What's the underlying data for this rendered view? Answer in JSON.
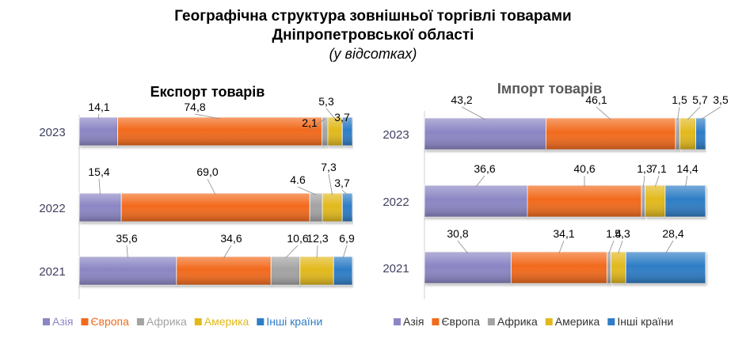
{
  "title_line1": "Географічна структура зовнішньої торгівлі товарами",
  "title_line2": "Дніпропетровської області",
  "subtitle": "(у відсотках)",
  "series_meta": [
    {
      "name": "Азія",
      "color": "#8b86c4"
    },
    {
      "name": "Європа",
      "color": "#f26a1b"
    },
    {
      "name": "Африка",
      "color": "#a3a3a3"
    },
    {
      "name": "Америка",
      "color": "#e2b91c"
    },
    {
      "name": "Інші країни",
      "color": "#2f7dc6"
    }
  ],
  "chart_data": [
    {
      "type": "bar",
      "orientation": "horizontal",
      "stacked": true,
      "title": "Експорт товарів",
      "title_color": "#000000",
      "categories": [
        "2023",
        "2022",
        "2021"
      ],
      "series": [
        {
          "name": "Азія",
          "values": [
            14.1,
            15.4,
            35.6
          ],
          "labels": [
            "14,1",
            "15,4",
            "35,6"
          ]
        },
        {
          "name": "Європа",
          "values": [
            74.8,
            69.0,
            34.6
          ],
          "labels": [
            "74,8",
            "69,0",
            "34,6"
          ]
        },
        {
          "name": "Африка",
          "values": [
            2.1,
            4.6,
            10.6
          ],
          "labels": [
            "2,1",
            "4.6",
            "10,6"
          ]
        },
        {
          "name": "Америка",
          "values": [
            5.3,
            7.3,
            12.3
          ],
          "labels": [
            "5,3",
            "7,3",
            "12,3"
          ]
        },
        {
          "name": "Інші країни",
          "values": [
            3.7,
            3.7,
            6.9
          ],
          "labels": [
            "3,7",
            "3,7",
            "6,9"
          ]
        }
      ],
      "legend_position": "bottom",
      "legend_text_colored": true
    },
    {
      "type": "bar",
      "orientation": "horizontal",
      "stacked": true,
      "title": "Імпорт товарів",
      "title_color": "#595959",
      "categories": [
        "2023",
        "2022",
        "2021"
      ],
      "series": [
        {
          "name": "Азія",
          "values": [
            43.2,
            36.6,
            30.8
          ],
          "labels": [
            "43,2",
            "36,6",
            "30,8"
          ]
        },
        {
          "name": "Європа",
          "values": [
            46.1,
            40.6,
            34.1
          ],
          "labels": [
            "46,1",
            "40,6",
            "34,1"
          ]
        },
        {
          "name": "Африка",
          "values": [
            1.5,
            1.3,
            1.4
          ],
          "labels": [
            "1,5",
            "1,3",
            "1.4"
          ]
        },
        {
          "name": "Америка",
          "values": [
            5.7,
            7.1,
            5.3
          ],
          "labels": [
            "5,7",
            "7,1",
            "5,3"
          ]
        },
        {
          "name": "Інші країни",
          "values": [
            3.5,
            14.4,
            28.4
          ],
          "labels": [
            "3,5",
            "14,4",
            "28,4"
          ]
        }
      ],
      "legend_position": "bottom",
      "legend_text_colored": false
    }
  ]
}
